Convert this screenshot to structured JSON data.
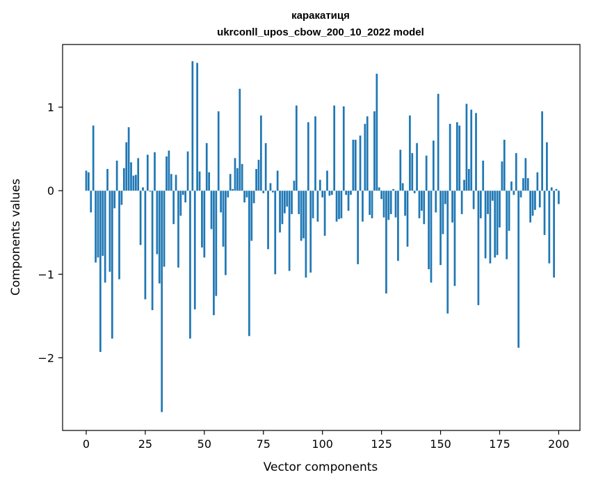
{
  "chart_data": {
    "type": "bar",
    "title": "каракатиця",
    "subtitle": "ukrconll_upos_cbow_200_10_2022 model",
    "xlabel": "Vector components",
    "ylabel": "Components values",
    "xlim": [
      -10,
      209
    ],
    "ylim": [
      -2.87,
      1.75
    ],
    "xticks": [
      0,
      25,
      50,
      75,
      100,
      125,
      150,
      175,
      200
    ],
    "yticks": [
      -2,
      -1,
      0,
      1
    ],
    "ytick_labels": [
      "−2",
      "−1",
      "0",
      "1"
    ],
    "grid": false,
    "bar_color": "#1f77b4",
    "values": [
      0.24,
      0.22,
      -0.26,
      0.78,
      -0.86,
      -0.8,
      -1.93,
      -0.78,
      -1.1,
      0.26,
      -0.97,
      -1.77,
      -0.21,
      0.36,
      -1.06,
      -0.17,
      0.27,
      0.58,
      0.76,
      0.34,
      0.18,
      0.19,
      0.39,
      -0.65,
      0.04,
      -1.3,
      0.43,
      -0.01,
      -1.43,
      0.46,
      -0.76,
      -1.11,
      -2.65,
      -0.91,
      0.41,
      0.48,
      0.2,
      -0.4,
      0.19,
      -0.92,
      -0.3,
      -0.05,
      -0.14,
      0.47,
      -1.77,
      1.55,
      -1.42,
      1.53,
      0.23,
      -0.68,
      -0.8,
      0.57,
      0.22,
      -0.46,
      -1.49,
      -1.26,
      0.95,
      -0.26,
      -0.67,
      -1.01,
      -0.08,
      0.2,
      0.02,
      0.39,
      0.27,
      1.22,
      0.32,
      -0.14,
      -0.08,
      -1.74,
      -0.6,
      -0.15,
      0.26,
      0.37,
      0.9,
      -0.03,
      0.57,
      -0.7,
      0.09,
      -0.02,
      -1.0,
      0.24,
      -0.5,
      -0.4,
      -0.27,
      -0.19,
      -0.96,
      -0.28,
      0.12,
      1.02,
      -0.28,
      -0.6,
      -0.57,
      -1.04,
      0.82,
      -0.98,
      -0.33,
      0.89,
      -0.37,
      0.13,
      -0.08,
      -0.54,
      0.24,
      -0.06,
      -0.05,
      1.02,
      -0.37,
      -0.34,
      -0.33,
      1.01,
      -0.05,
      -0.24,
      -0.05,
      0.61,
      0.61,
      -0.88,
      0.66,
      -0.37,
      0.8,
      0.89,
      -0.29,
      -0.33,
      0.95,
      1.4,
      0.04,
      -0.1,
      -0.32,
      -1.23,
      -0.35,
      -0.28,
      0.02,
      -0.32,
      -0.84,
      0.49,
      0.09,
      -0.3,
      -0.67,
      0.9,
      0.45,
      -0.03,
      0.57,
      -0.33,
      -0.24,
      -0.4,
      0.42,
      -0.94,
      -1.1,
      0.6,
      -0.26,
      1.16,
      -0.89,
      -0.52,
      -0.16,
      -1.47,
      0.8,
      -0.38,
      -1.14,
      0.82,
      0.78,
      -0.28,
      0.13,
      1.04,
      0.26,
      0.97,
      -0.22,
      0.93,
      -1.37,
      -0.33,
      0.36,
      -0.81,
      -0.28,
      -0.87,
      -0.12,
      -0.8,
      -0.77,
      -0.44,
      0.35,
      0.61,
      -0.82,
      -0.48,
      0.11,
      -0.05,
      0.45,
      -1.88,
      -0.08,
      0.15,
      0.39,
      0.15,
      -0.38,
      -0.3,
      -0.23,
      0.22,
      -0.2,
      0.95,
      -0.53,
      0.58,
      -0.87,
      0.04,
      -1.04,
      0.02,
      -0.16
    ]
  }
}
